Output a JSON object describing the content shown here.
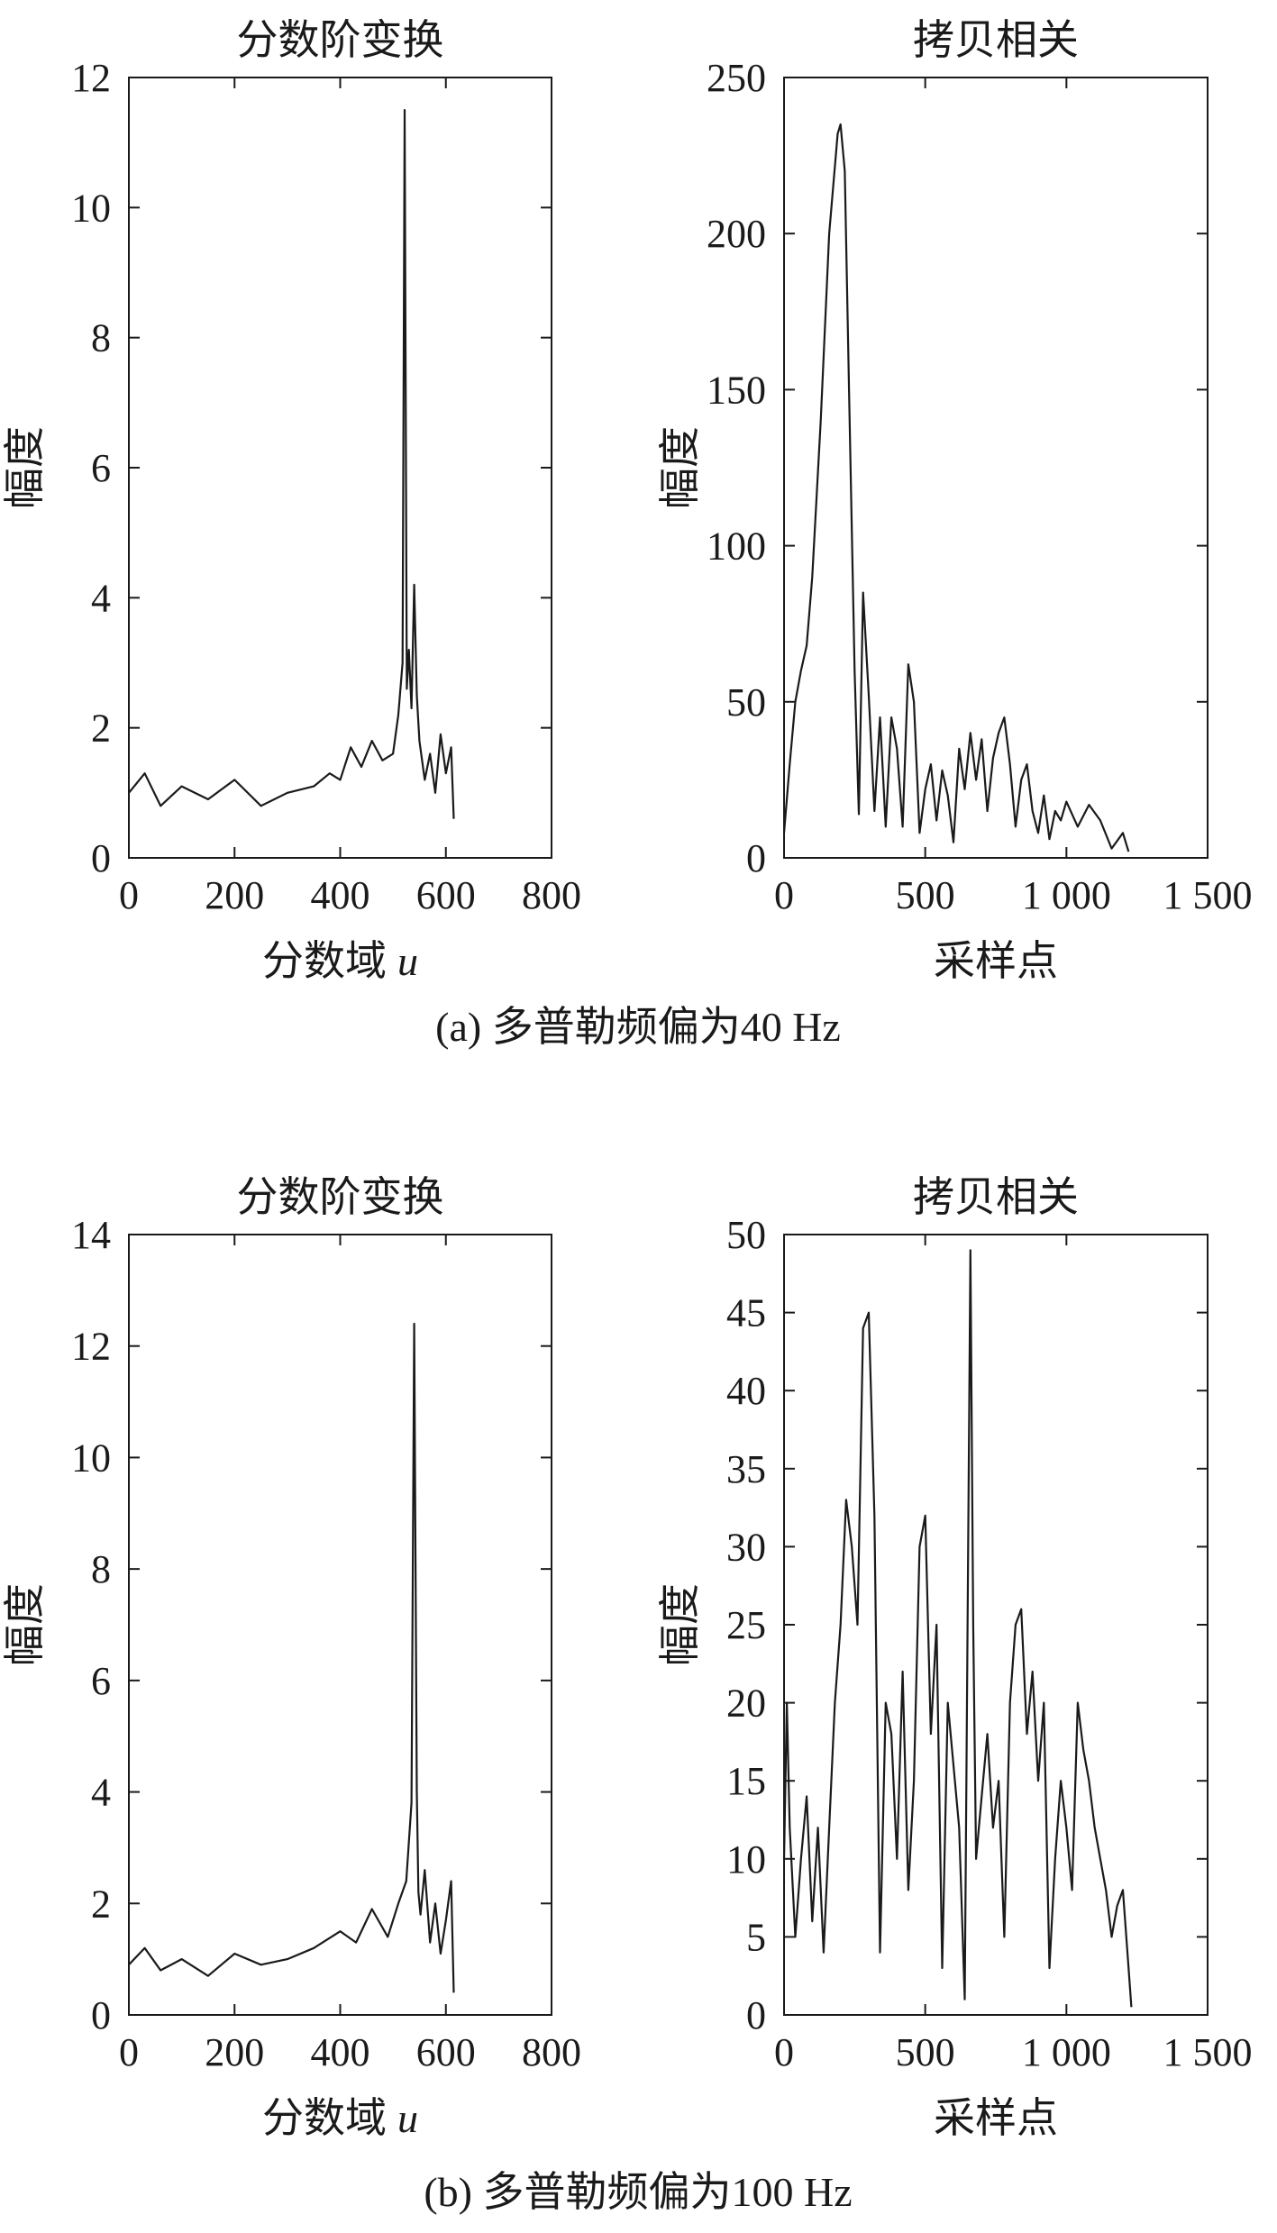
{
  "figure": {
    "captions": [
      "(a) 多普勒频偏为40 Hz",
      "(b) 多普勒频偏为100 Hz"
    ]
  },
  "chart_data": [
    {
      "id": "a1",
      "type": "line",
      "title": "分数阶变换",
      "xlabel": "分数域",
      "xlabel_var": "u",
      "ylabel": "幅度",
      "xlim": [
        0,
        800
      ],
      "ylim": [
        0,
        12
      ],
      "xticks": [
        0,
        200,
        400,
        600,
        800
      ],
      "yticks": [
        0,
        2,
        4,
        6,
        8,
        10,
        12
      ],
      "xtick_labels": [
        "0",
        "200",
        "400",
        "600",
        "800"
      ],
      "ytick_labels": [
        "0",
        "2",
        "4",
        "6",
        "8",
        "10",
        "12"
      ],
      "series": [
        {
          "x": [
            0,
            30,
            60,
            100,
            150,
            200,
            250,
            300,
            350,
            380,
            400,
            420,
            440,
            460,
            480,
            500,
            510,
            518,
            522,
            526,
            530,
            535,
            540,
            545,
            550,
            560,
            570,
            580,
            590,
            600,
            610,
            615
          ],
          "y": [
            1.0,
            1.3,
            0.8,
            1.1,
            0.9,
            1.2,
            0.8,
            1.0,
            1.1,
            1.3,
            1.2,
            1.7,
            1.4,
            1.8,
            1.5,
            1.6,
            2.2,
            3.0,
            11.5,
            2.6,
            3.2,
            2.3,
            4.2,
            2.5,
            1.8,
            1.2,
            1.6,
            1.0,
            1.9,
            1.3,
            1.7,
            0.6
          ]
        }
      ]
    },
    {
      "id": "a2",
      "type": "line",
      "title": "拷贝相关",
      "xlabel": "采样点",
      "ylabel": "幅度",
      "xlim": [
        0,
        1500
      ],
      "ylim": [
        0,
        250
      ],
      "xticks": [
        0,
        500,
        1000,
        1500
      ],
      "yticks": [
        0,
        50,
        100,
        150,
        200,
        250
      ],
      "xtick_labels": [
        "0",
        "500",
        "1 000",
        "1 500"
      ],
      "ytick_labels": [
        "0",
        "50",
        "100",
        "150",
        "200",
        "250"
      ],
      "series": [
        {
          "x": [
            0,
            20,
            40,
            60,
            80,
            100,
            130,
            160,
            190,
            200,
            215,
            230,
            250,
            265,
            280,
            300,
            320,
            340,
            360,
            380,
            400,
            420,
            440,
            460,
            480,
            500,
            520,
            540,
            560,
            580,
            600,
            620,
            640,
            660,
            680,
            700,
            720,
            740,
            760,
            780,
            800,
            820,
            840,
            860,
            880,
            900,
            920,
            940,
            960,
            980,
            1000,
            1040,
            1080,
            1120,
            1160,
            1200,
            1220
          ],
          "y": [
            8,
            30,
            50,
            60,
            68,
            90,
            140,
            200,
            232,
            235,
            220,
            150,
            60,
            14,
            85,
            52,
            15,
            45,
            10,
            45,
            35,
            10,
            62,
            50,
            8,
            22,
            30,
            12,
            28,
            20,
            5,
            35,
            22,
            40,
            25,
            38,
            15,
            32,
            40,
            45,
            30,
            10,
            25,
            30,
            15,
            8,
            20,
            6,
            15,
            12,
            18,
            10,
            17,
            12,
            3,
            8,
            2
          ]
        }
      ]
    },
    {
      "id": "b1",
      "type": "line",
      "title": "分数阶变换",
      "xlabel": "分数域",
      "xlabel_var": "u",
      "ylabel": "幅度",
      "xlim": [
        0,
        800
      ],
      "ylim": [
        0,
        14
      ],
      "xticks": [
        0,
        200,
        400,
        600,
        800
      ],
      "yticks": [
        0,
        2,
        4,
        6,
        8,
        10,
        12,
        14
      ],
      "xtick_labels": [
        "0",
        "200",
        "400",
        "600",
        "800"
      ],
      "ytick_labels": [
        "0",
        "2",
        "4",
        "6",
        "8",
        "10",
        "12",
        "14"
      ],
      "series": [
        {
          "x": [
            0,
            30,
            60,
            100,
            150,
            200,
            250,
            300,
            350,
            400,
            430,
            460,
            490,
            510,
            525,
            535,
            540,
            545,
            548,
            552,
            560,
            570,
            580,
            590,
            600,
            610,
            615
          ],
          "y": [
            0.9,
            1.2,
            0.8,
            1.0,
            0.7,
            1.1,
            0.9,
            1.0,
            1.2,
            1.5,
            1.3,
            1.9,
            1.4,
            2.0,
            2.4,
            3.8,
            12.4,
            4.0,
            2.2,
            1.8,
            2.6,
            1.3,
            2.0,
            1.1,
            1.7,
            2.4,
            0.4
          ]
        }
      ]
    },
    {
      "id": "b2",
      "type": "line",
      "title": "拷贝相关",
      "xlabel": "采样点",
      "ylabel": "幅度",
      "xlim": [
        0,
        1500
      ],
      "ylim": [
        0,
        50
      ],
      "xticks": [
        0,
        500,
        1000,
        1500
      ],
      "yticks": [
        0,
        5,
        10,
        15,
        20,
        25,
        30,
        35,
        40,
        45,
        50
      ],
      "xtick_labels": [
        "0",
        "500",
        "1 000",
        "1 500"
      ],
      "ytick_labels": [
        "0",
        "5",
        "10",
        "15",
        "20",
        "25",
        "30",
        "35",
        "40",
        "45",
        "50"
      ],
      "series": [
        {
          "x": [
            0,
            10,
            20,
            40,
            60,
            80,
            100,
            120,
            140,
            160,
            180,
            200,
            220,
            240,
            260,
            280,
            300,
            320,
            340,
            360,
            380,
            400,
            420,
            440,
            460,
            480,
            500,
            520,
            540,
            560,
            580,
            600,
            620,
            640,
            660,
            670,
            680,
            700,
            720,
            740,
            760,
            780,
            800,
            820,
            840,
            860,
            880,
            900,
            920,
            940,
            960,
            980,
            1000,
            1020,
            1040,
            1060,
            1080,
            1100,
            1120,
            1140,
            1160,
            1180,
            1200,
            1220,
            1230
          ],
          "y": [
            10,
            20,
            12,
            5,
            10,
            14,
            6,
            12,
            4,
            12,
            20,
            25,
            33,
            30,
            25,
            44,
            45,
            32,
            4,
            20,
            18,
            10,
            22,
            8,
            15,
            30,
            32,
            18,
            25,
            3,
            20,
            16,
            12,
            1,
            49,
            25,
            10,
            14,
            18,
            12,
            15,
            5,
            20,
            25,
            26,
            18,
            22,
            15,
            20,
            3,
            10,
            15,
            12,
            8,
            20,
            17,
            15,
            12,
            10,
            8,
            5,
            7,
            8,
            3,
            0.5
          ]
        }
      ]
    }
  ]
}
